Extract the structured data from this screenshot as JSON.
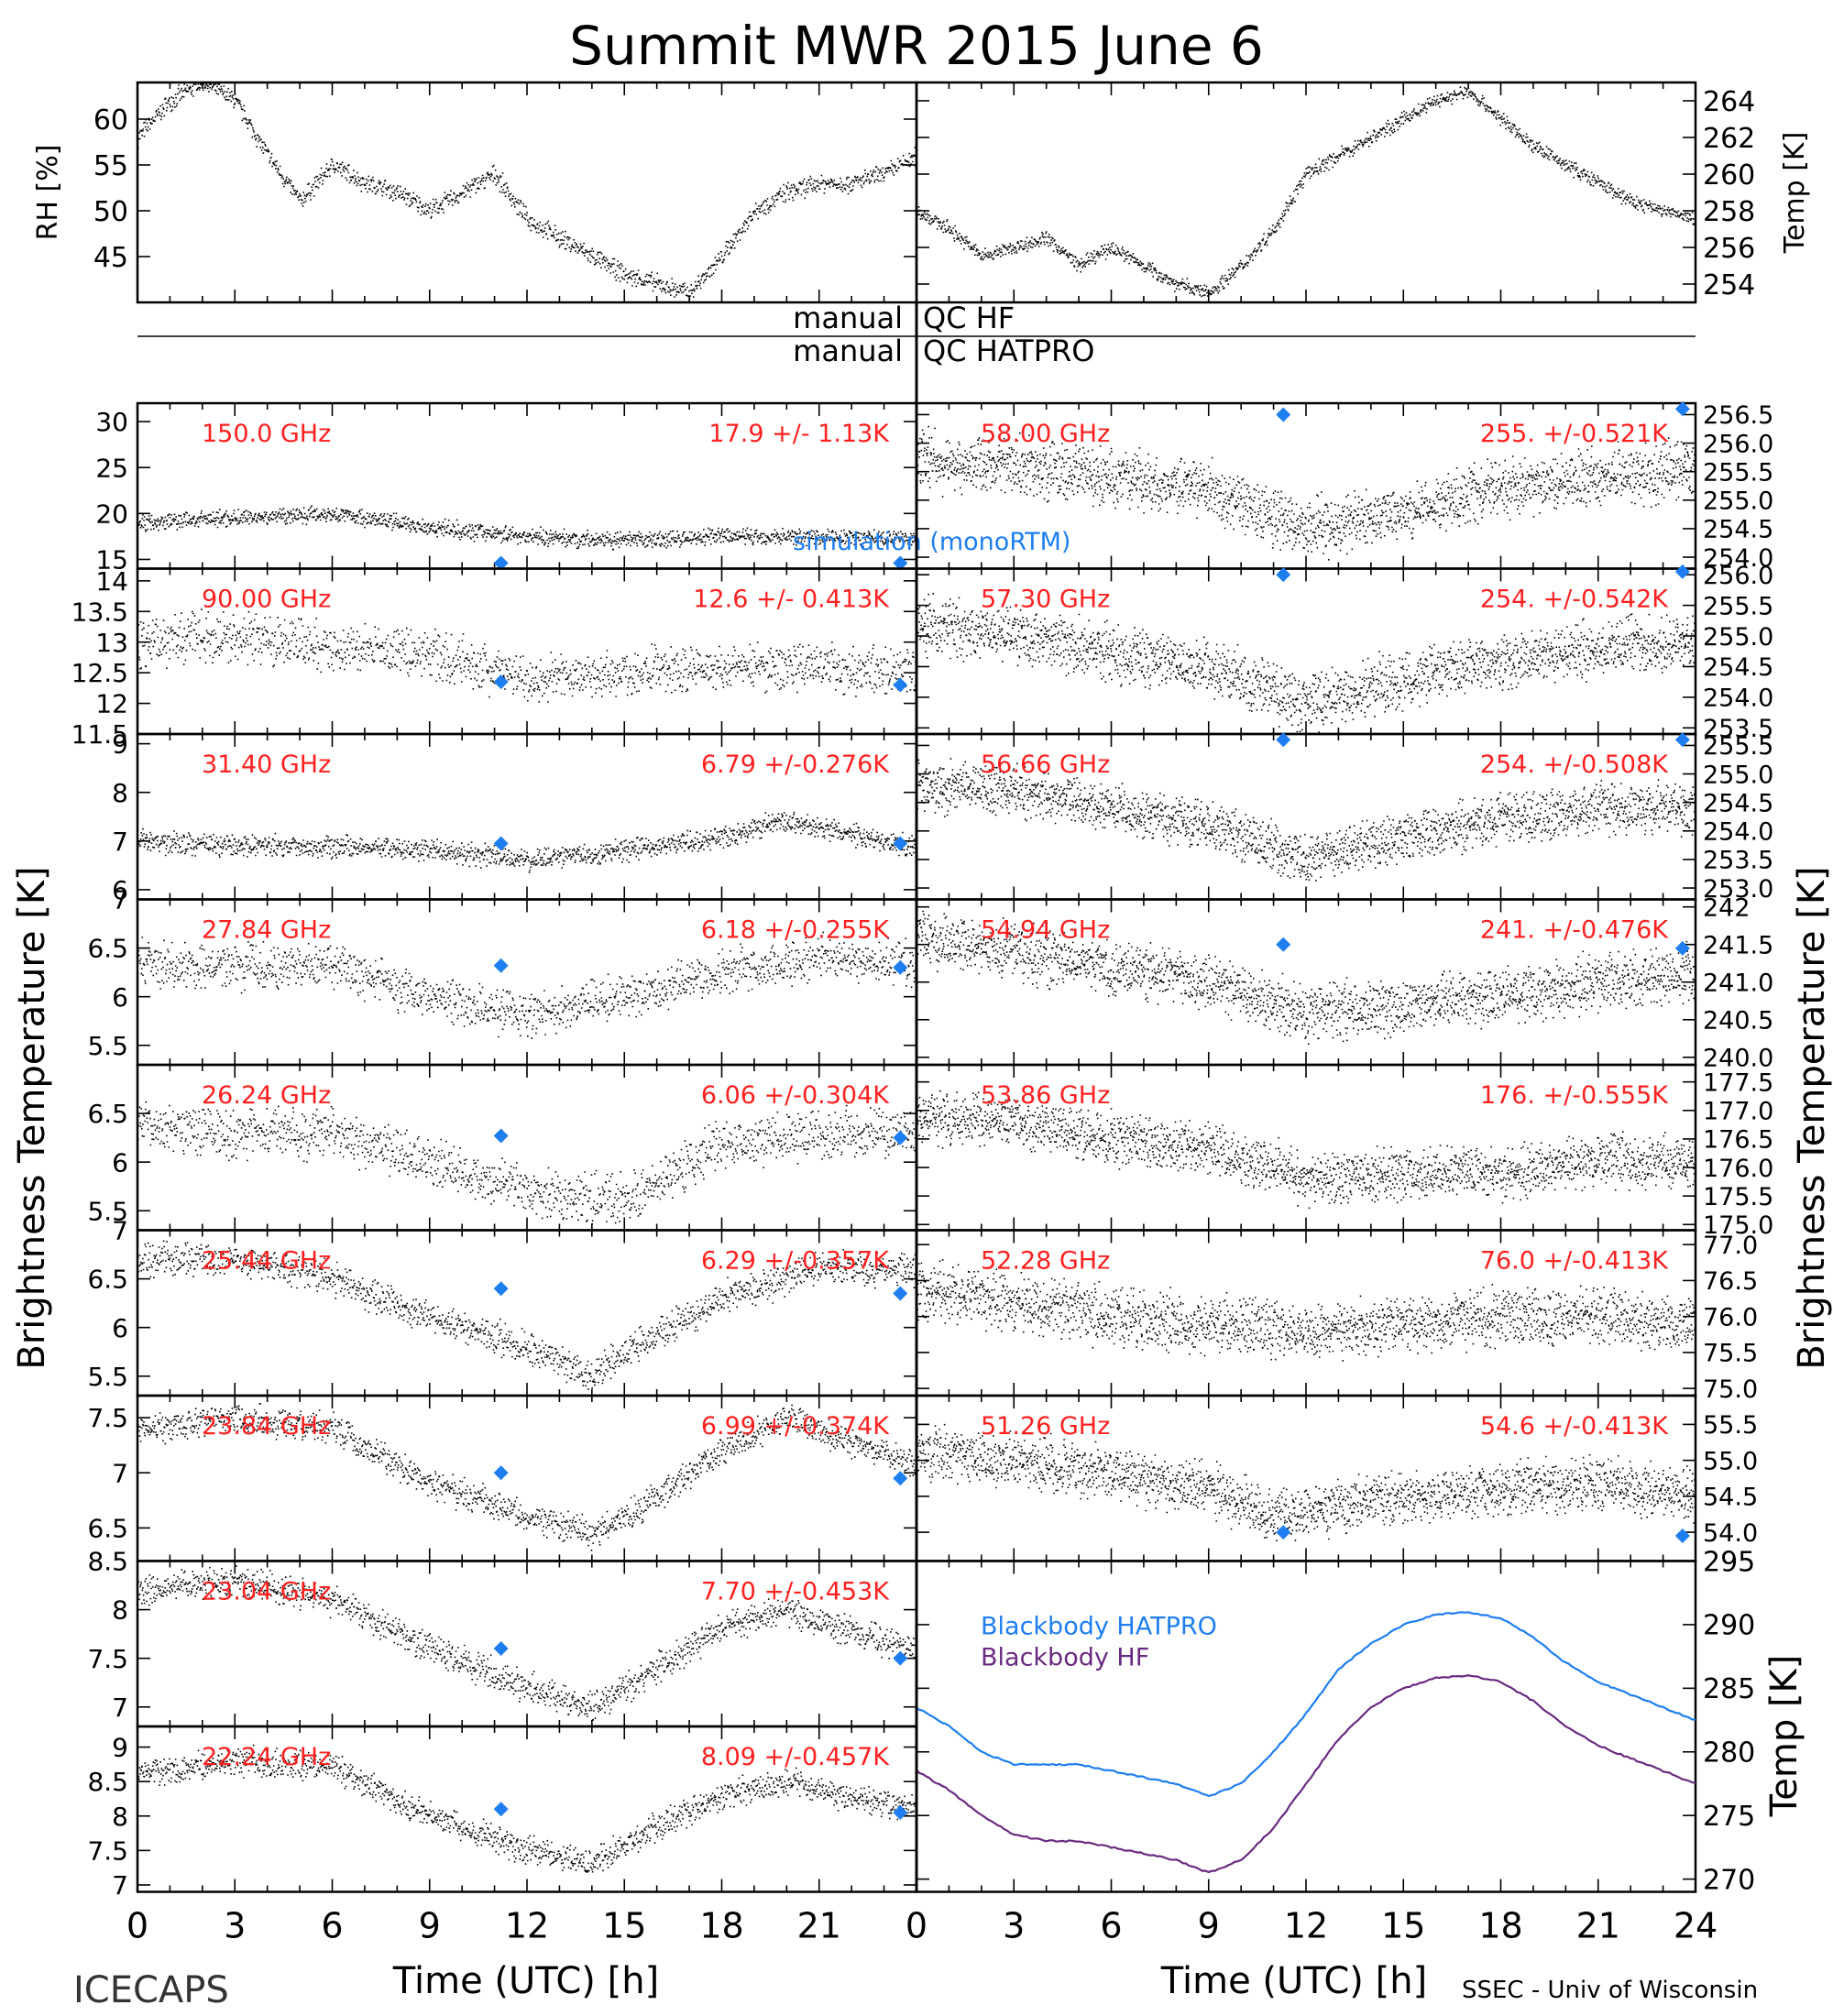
{
  "figure": {
    "title": "Summit MWR 2015 June  6",
    "bottom_left": "ICECAPS",
    "bottom_right": "SSEC - Univ of Wisconsin",
    "x_label_left": "Time (UTC) [h]",
    "x_label_right": "Time (UTC) [h]",
    "y_label_left": "Brightness Temperature [K]",
    "y_label_right": "Brightness Temperature [K]",
    "qc_left_1": "manual",
    "qc_right_1": "QC HF",
    "qc_left_2": "manual",
    "qc_right_2": "QC HATPRO",
    "model_label": "simulation (monoRTM)",
    "trace_color": "#000000",
    "label_color": "#ff2020",
    "marker_color": "#1e7ef0",
    "x_ticks": [
      0,
      3,
      6,
      9,
      12,
      15,
      18,
      21
    ],
    "x_ticks_right": [
      0,
      3,
      6,
      9,
      12,
      15,
      18,
      21,
      24
    ]
  },
  "chart_data": [
    {
      "type": "scatter",
      "panel": "rh",
      "ylabel": "RH [%]",
      "ylim": [
        40,
        64
      ],
      "yticks": [
        45,
        50,
        55,
        60
      ],
      "xlim": [
        0,
        24
      ],
      "x": [
        0,
        1,
        2,
        3,
        4,
        5,
        6,
        7,
        8,
        9,
        10,
        11,
        12,
        13,
        14,
        15,
        16,
        17,
        18,
        19,
        20,
        21,
        22,
        23,
        24
      ],
      "y": [
        58,
        62,
        64,
        62,
        56,
        51,
        55,
        53,
        52,
        50,
        52,
        54,
        49,
        47,
        45,
        43,
        42,
        41,
        45,
        50,
        52,
        53,
        53,
        54,
        56
      ]
    },
    {
      "type": "scatter",
      "panel": "temp",
      "ylabel": "Temp [K]",
      "ylim": [
        253,
        265
      ],
      "yticks": [
        254,
        256,
        258,
        260,
        262,
        264
      ],
      "xlim": [
        0,
        24
      ],
      "x": [
        0,
        1,
        2,
        3,
        4,
        5,
        6,
        7,
        8,
        9,
        10,
        11,
        12,
        13,
        14,
        15,
        16,
        17,
        18,
        19,
        20,
        21,
        22,
        23,
        24
      ],
      "y": [
        258,
        257,
        255.5,
        256,
        256.5,
        255,
        256,
        255,
        254,
        253.5,
        255,
        257,
        260,
        261,
        262,
        263,
        264,
        264.5,
        263,
        261.5,
        260.5,
        259.5,
        258.5,
        258,
        257.5
      ]
    },
    {
      "type": "scatter",
      "panel": "left",
      "freq": "150.0 GHz",
      "stat": "17.9 +/-  1.13K",
      "ylim": [
        14,
        32
      ],
      "yticks": [
        15,
        20,
        25,
        30
      ],
      "xlim": [
        0,
        24
      ],
      "noise": 0.8,
      "x": [
        0,
        3,
        6,
        9,
        12,
        15,
        18,
        21,
        23.6
      ],
      "y": [
        19,
        19.5,
        20,
        18.5,
        17.5,
        17,
        17.5,
        17.5,
        17.2
      ],
      "sim": [
        [
          11.2,
          14.6
        ],
        [
          23.5,
          14.6
        ]
      ],
      "show_model_label": true
    },
    {
      "type": "scatter",
      "panel": "left",
      "freq": "90.00 GHz",
      "stat": "12.6 +/- 0.413K",
      "ylim": [
        11.5,
        14.2
      ],
      "yticks": [
        11.5,
        12.0,
        12.5,
        13.0,
        13.5,
        14.0
      ],
      "xlim": [
        0,
        24
      ],
      "noise": 0.35,
      "x": [
        0,
        3,
        6,
        9,
        12,
        15,
        18,
        21,
        23.6
      ],
      "y": [
        13.0,
        13.1,
        12.9,
        12.8,
        12.4,
        12.5,
        12.6,
        12.6,
        12.5
      ],
      "sim": [
        [
          11.2,
          12.35
        ],
        [
          23.5,
          12.3
        ]
      ]
    },
    {
      "type": "scatter",
      "panel": "left",
      "freq": "31.40 GHz",
      "stat": "6.79 +/-0.276K",
      "ylim": [
        5.8,
        9.2
      ],
      "yticks": [
        6,
        7,
        8,
        9
      ],
      "xlim": [
        0,
        24
      ],
      "noise": 0.2,
      "x": [
        0,
        3,
        6,
        9,
        12,
        15,
        18,
        20,
        23.6
      ],
      "y": [
        7.0,
        6.9,
        6.9,
        6.8,
        6.6,
        6.8,
        7.1,
        7.4,
        6.9
      ],
      "sim": [
        [
          11.2,
          6.95
        ],
        [
          23.5,
          6.95
        ]
      ]
    },
    {
      "type": "scatter",
      "panel": "left",
      "freq": "27.84 GHz",
      "stat": "6.18 +/-0.255K",
      "ylim": [
        5.3,
        7.0
      ],
      "yticks": [
        5.5,
        6.0,
        6.5,
        7.0
      ],
      "xlim": [
        0,
        24
      ],
      "noise": 0.2,
      "x": [
        0,
        3,
        6,
        9,
        12,
        15,
        18,
        21,
        23.6
      ],
      "y": [
        6.35,
        6.3,
        6.3,
        6.0,
        5.8,
        6.0,
        6.25,
        6.4,
        6.35
      ],
      "sim": [
        [
          11.2,
          6.32
        ],
        [
          23.5,
          6.3
        ]
      ]
    },
    {
      "type": "scatter",
      "panel": "left",
      "freq": "26.24 GHz",
      "stat": "6.06 +/-0.304K",
      "ylim": [
        5.3,
        7.0
      ],
      "yticks": [
        5.5,
        6.0,
        6.5
      ],
      "xlim": [
        0,
        24
      ],
      "noise": 0.22,
      "x": [
        0,
        3,
        6,
        9,
        12,
        15,
        18,
        21,
        23.6
      ],
      "y": [
        6.4,
        6.3,
        6.3,
        6.0,
        5.7,
        5.6,
        6.2,
        6.3,
        6.3
      ],
      "sim": [
        [
          11.2,
          6.27
        ],
        [
          23.5,
          6.25
        ]
      ]
    },
    {
      "type": "scatter",
      "panel": "left",
      "freq": "25.44 GHz",
      "stat": "6.29 +/-0.357K",
      "ylim": [
        5.3,
        7.0
      ],
      "yticks": [
        5.5,
        6.0,
        6.5,
        7.0
      ],
      "xlim": [
        0,
        24
      ],
      "noise": 0.15,
      "x": [
        0,
        3,
        6,
        9,
        12,
        14,
        15,
        18,
        21,
        23.6
      ],
      "y": [
        6.7,
        6.7,
        6.5,
        6.1,
        5.8,
        5.5,
        5.75,
        6.3,
        6.6,
        6.6
      ],
      "sim": [
        [
          11.2,
          6.4
        ],
        [
          23.5,
          6.35
        ]
      ]
    },
    {
      "type": "scatter",
      "panel": "left",
      "freq": "23.84 GHz",
      "stat": "6.99 +/-0.374K",
      "ylim": [
        6.2,
        7.7
      ],
      "yticks": [
        6.5,
        7.0,
        7.5
      ],
      "xlim": [
        0,
        24
      ],
      "noise": 0.12,
      "x": [
        0,
        3,
        6,
        9,
        12,
        14,
        15,
        18,
        20,
        23.6
      ],
      "y": [
        7.4,
        7.5,
        7.4,
        6.9,
        6.6,
        6.45,
        6.6,
        7.2,
        7.5,
        7.1
      ],
      "sim": [
        [
          11.2,
          7.0
        ],
        [
          23.5,
          6.95
        ]
      ]
    },
    {
      "type": "scatter",
      "panel": "left",
      "freq": "23.04 GHz",
      "stat": "7.70 +/-0.453K",
      "ylim": [
        6.8,
        8.5
      ],
      "yticks": [
        7.0,
        7.5,
        8.0,
        8.5
      ],
      "xlim": [
        0,
        24
      ],
      "noise": 0.14,
      "x": [
        0,
        3,
        6,
        9,
        12,
        14,
        15,
        18,
        20,
        23.6
      ],
      "y": [
        8.2,
        8.3,
        8.1,
        7.6,
        7.2,
        7.0,
        7.2,
        7.8,
        8.0,
        7.6
      ],
      "sim": [
        [
          11.2,
          7.6
        ],
        [
          23.5,
          7.5
        ]
      ]
    },
    {
      "type": "scatter",
      "panel": "left",
      "freq": "22.24 GHz",
      "stat": "8.09 +/-0.457K",
      "ylim": [
        6.9,
        9.3
      ],
      "yticks": [
        7.0,
        7.5,
        8.0,
        8.5,
        9.0
      ],
      "xlim": [
        0,
        24
      ],
      "noise": 0.18,
      "x": [
        0,
        3,
        6,
        9,
        12,
        14,
        15,
        18,
        20,
        23.6
      ],
      "y": [
        8.6,
        8.8,
        8.7,
        8.0,
        7.5,
        7.3,
        7.6,
        8.3,
        8.5,
        8.1
      ],
      "sim": [
        [
          11.2,
          8.1
        ],
        [
          23.5,
          8.05
        ]
      ]
    },
    {
      "type": "scatter",
      "panel": "right",
      "freq": "58.00 GHz",
      "stat": "255. +/-0.521K",
      "ylim": [
        253.8,
        256.7
      ],
      "ytick_labels": [
        "254.0",
        "254.5",
        "255.0",
        "255.5",
        "256.0",
        "256.5"
      ],
      "ytick_values": [
        254.0,
        254.5,
        255.0,
        255.5,
        256.0,
        256.5
      ],
      "xlim": [
        0,
        24
      ],
      "noise": 0.45,
      "x": [
        0,
        3,
        6,
        9,
        11,
        12,
        15,
        18,
        21,
        23.6
      ],
      "y": [
        255.7,
        255.6,
        255.4,
        255.2,
        254.7,
        254.5,
        254.8,
        255.2,
        255.4,
        255.5
      ],
      "sim": [
        [
          11.3,
          256.5
        ],
        [
          23.6,
          256.6
        ]
      ]
    },
    {
      "type": "scatter",
      "panel": "right",
      "freq": "57.30 GHz",
      "stat": "254. +/-0.542K",
      "ylim": [
        253.4,
        256.1
      ],
      "ytick_labels": [
        "253.5",
        "254.0",
        "254.5",
        "255.0",
        "255.5",
        "256.0"
      ],
      "ytick_values": [
        253.5,
        254.0,
        254.5,
        255.0,
        255.5,
        256.0
      ],
      "xlim": [
        0,
        24
      ],
      "noise": 0.4,
      "x": [
        0,
        3,
        6,
        9,
        11,
        12,
        15,
        18,
        21,
        23.6
      ],
      "y": [
        255.2,
        255.0,
        254.7,
        254.5,
        254.1,
        253.9,
        254.3,
        254.6,
        254.8,
        254.9
      ],
      "sim": [
        [
          11.3,
          256.0
        ],
        [
          23.6,
          256.05
        ]
      ]
    },
    {
      "type": "scatter",
      "panel": "right",
      "freq": "56.66 GHz",
      "stat": "254. +/-0.508K",
      "ylim": [
        252.8,
        255.7
      ],
      "ytick_labels": [
        "253.0",
        "253.5",
        "254.0",
        "254.5",
        "255.0",
        "255.5"
      ],
      "ytick_values": [
        253.0,
        253.5,
        254.0,
        254.5,
        255.0,
        255.5
      ],
      "xlim": [
        0,
        24
      ],
      "noise": 0.38,
      "x": [
        0,
        3,
        6,
        9,
        11,
        12,
        15,
        18,
        21,
        23.6
      ],
      "y": [
        254.8,
        254.7,
        254.4,
        254.1,
        253.7,
        253.5,
        253.9,
        254.2,
        254.4,
        254.4
      ],
      "sim": [
        [
          11.3,
          255.6
        ],
        [
          23.6,
          255.6
        ]
      ]
    },
    {
      "type": "scatter",
      "panel": "right",
      "freq": "54.94 GHz",
      "stat": "241. +/-0.476K",
      "ylim": [
        239.9,
        242.1
      ],
      "ytick_labels": [
        "240.0",
        "240.5",
        "241.0",
        "241.5",
        "242"
      ],
      "ytick_values": [
        240.0,
        240.5,
        241.0,
        241.5,
        242.0
      ],
      "xlim": [
        0,
        24
      ],
      "noise": 0.32,
      "x": [
        0,
        3,
        6,
        9,
        11,
        12,
        15,
        18,
        21,
        23.6
      ],
      "y": [
        241.6,
        241.4,
        241.2,
        241.0,
        240.7,
        240.6,
        240.7,
        240.8,
        241.0,
        241.1
      ],
      "sim": [
        [
          11.3,
          241.5
        ],
        [
          23.6,
          241.45
        ]
      ]
    },
    {
      "type": "scatter",
      "panel": "right",
      "freq": "53.86 GHz",
      "stat": "176. +/-0.555K",
      "ylim": [
        174.9,
        177.8
      ],
      "ytick_labels": [
        "175.0",
        "175.5",
        "176.0",
        "176.5",
        "177.0",
        "177.5"
      ],
      "ytick_values": [
        175.0,
        175.5,
        176.0,
        176.5,
        177.0,
        177.5
      ],
      "xlim": [
        0,
        24
      ],
      "noise": 0.4,
      "x": [
        0,
        3,
        6,
        9,
        11,
        12,
        15,
        18,
        21,
        23.6
      ],
      "y": [
        176.9,
        176.8,
        176.5,
        176.3,
        176.0,
        175.8,
        175.9,
        175.9,
        176.1,
        176.1
      ],
      "sim": []
    },
    {
      "type": "scatter",
      "panel": "right",
      "freq": "52.28 GHz",
      "stat": "76.0 +/-0.413K",
      "ylim": [
        74.9,
        77.2
      ],
      "ytick_labels": [
        "75.0",
        "75.5",
        "76.0",
        "76.5",
        "77.0"
      ],
      "ytick_values": [
        75.0,
        75.5,
        76.0,
        76.5,
        77.0
      ],
      "xlim": [
        0,
        24
      ],
      "noise": 0.35,
      "x": [
        0,
        3,
        6,
        9,
        12,
        15,
        18,
        21,
        23.6
      ],
      "y": [
        76.4,
        76.2,
        76.0,
        75.9,
        75.8,
        75.9,
        76.0,
        76.0,
        75.9
      ],
      "sim": []
    },
    {
      "type": "scatter",
      "panel": "right",
      "freq": "51.26 GHz",
      "stat": "54.6 +/-0.413K",
      "ylim": [
        53.6,
        55.9
      ],
      "ytick_labels": [
        "54.0",
        "54.5",
        "55.0",
        "55.5"
      ],
      "ytick_values": [
        54.0,
        54.5,
        55.0,
        55.5
      ],
      "xlim": [
        0,
        24
      ],
      "noise": 0.32,
      "x": [
        0,
        3,
        6,
        9,
        11,
        12,
        15,
        18,
        21,
        23.6
      ],
      "y": [
        55.1,
        55.0,
        54.8,
        54.6,
        54.2,
        54.3,
        54.5,
        54.6,
        54.7,
        54.5
      ],
      "sim": [
        [
          11.3,
          54.0
        ],
        [
          23.6,
          53.95
        ]
      ]
    },
    {
      "type": "line",
      "panel": "bb",
      "ylabel": "Temp [K]",
      "ylim": [
        269,
        295
      ],
      "yticks": [
        270,
        275,
        280,
        285,
        290,
        295
      ],
      "xlim": [
        0,
        24
      ],
      "series": [
        {
          "name": "Blackbody HATPRO",
          "color": "#1e7ef0",
          "x": [
            0,
            1,
            2,
            3,
            4,
            5,
            6,
            7,
            8,
            9,
            10,
            11,
            12,
            13,
            14,
            15,
            16,
            17,
            18,
            19,
            20,
            21,
            22,
            23,
            24
          ],
          "y": [
            283.5,
            282,
            280,
            279,
            279,
            279,
            278.5,
            278,
            277.5,
            276.5,
            277.5,
            280,
            283,
            286.5,
            288.5,
            290,
            290.8,
            291,
            290.5,
            289,
            287,
            285.5,
            284.5,
            283.5,
            282.5
          ]
        },
        {
          "name": "Blackbody HF",
          "color": "#6a2a80",
          "x": [
            0,
            1,
            2,
            3,
            4,
            5,
            6,
            7,
            8,
            9,
            10,
            11,
            12,
            13,
            14,
            15,
            16,
            17,
            18,
            19,
            20,
            21,
            22,
            23,
            24
          ],
          "y": [
            278.5,
            277,
            275,
            273.5,
            273,
            273,
            272.5,
            272,
            271.5,
            270.5,
            271.5,
            274,
            277.5,
            281,
            283.5,
            285,
            285.8,
            286,
            285.5,
            284,
            282,
            280.5,
            279.5,
            278.5,
            277.5
          ]
        }
      ]
    }
  ]
}
